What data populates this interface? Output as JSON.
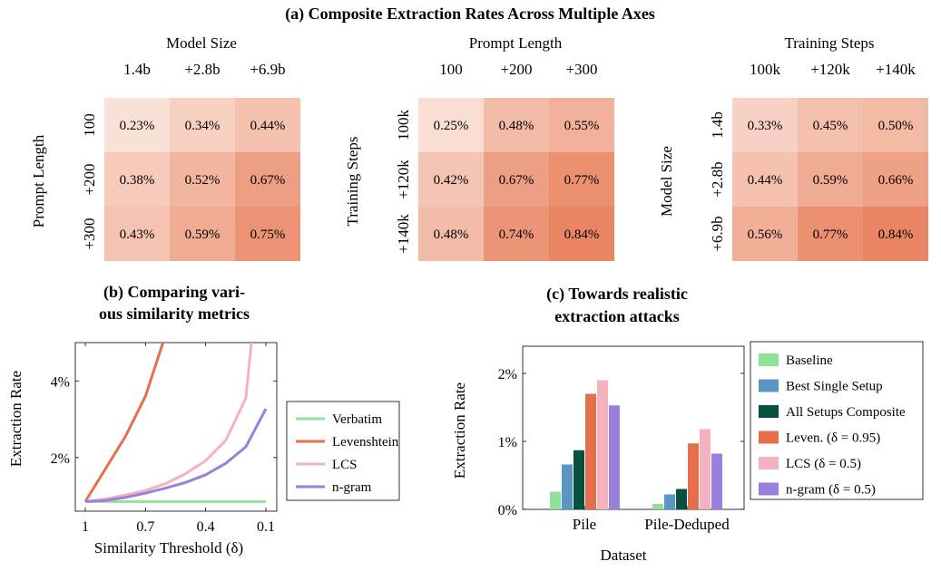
{
  "colors": {
    "heat_low": "#fbe6dd",
    "heat_high": "#e8825f",
    "verbatim": "#8ee29a",
    "levenshtein": "#e56f4a",
    "lcs": "#f3b2be",
    "ngram": "#9b7fdc",
    "baseline": "#8ee29a",
    "best_single": "#5a96c4",
    "all_composite": "#08503f",
    "leven_bar": "#e56f4a",
    "lcs_bar": "#f3b2be",
    "ngram_bar": "#9b7fdc"
  },
  "chart_data": [
    {
      "type": "heatmap",
      "title": "(a) Composite Extraction Rates Across Multiple Axes",
      "xlabel": "Model Size",
      "ylabel": "Prompt Length",
      "x_categories": [
        "1.4b",
        "+2.8b",
        "+6.9b"
      ],
      "y_categories": [
        "100",
        "+200",
        "+300"
      ],
      "cell_labels": [
        [
          "0.23%",
          "0.34%",
          "0.44%"
        ],
        [
          "0.38%",
          "0.52%",
          "0.67%"
        ],
        [
          "0.43%",
          "0.59%",
          "0.75%"
        ]
      ],
      "values": [
        [
          0.23,
          0.34,
          0.44
        ],
        [
          0.38,
          0.52,
          0.67
        ],
        [
          0.43,
          0.59,
          0.75
        ]
      ]
    },
    {
      "type": "heatmap",
      "xlabel": "Prompt Length",
      "ylabel": "Training Steps",
      "x_categories": [
        "100",
        "+200",
        "+300"
      ],
      "y_categories": [
        "100k",
        "+120k",
        "+140k"
      ],
      "cell_labels": [
        [
          "0.25%",
          "0.48%",
          "0.55%"
        ],
        [
          "0.42%",
          "0.67%",
          "0.77%"
        ],
        [
          "0.48%",
          "0.74%",
          "0.84%"
        ]
      ],
      "values": [
        [
          0.25,
          0.48,
          0.55
        ],
        [
          0.42,
          0.67,
          0.77
        ],
        [
          0.48,
          0.74,
          0.84
        ]
      ]
    },
    {
      "type": "heatmap",
      "xlabel": "Training Steps",
      "ylabel": "Model Size",
      "x_categories": [
        "100k",
        "+120k",
        "+140k"
      ],
      "y_categories": [
        "1.4b",
        "+2.8b",
        "+6.9b"
      ],
      "cell_labels": [
        [
          "0.33%",
          "0.45%",
          "0.50%"
        ],
        [
          "0.44%",
          "0.59%",
          "0.66%"
        ],
        [
          "0.56%",
          "0.77%",
          "0.84%"
        ]
      ],
      "values": [
        [
          0.33,
          0.45,
          0.5
        ],
        [
          0.44,
          0.59,
          0.66
        ],
        [
          0.56,
          0.77,
          0.84
        ]
      ]
    },
    {
      "type": "line",
      "title_lines": [
        "(b) Comparing vari-",
        "ous similarity metrics"
      ],
      "xlabel": "Similarity Threshold (δ)",
      "ylabel": "Extraction Rate",
      "x_reversed": true,
      "xlim": [
        1,
        0.1
      ],
      "ylim": [
        0.6,
        5.0
      ],
      "x_ticks": [
        1,
        0.7,
        0.4,
        0.1
      ],
      "x_tick_labels": [
        "1",
        "0.7",
        "0.4",
        "0.1"
      ],
      "y_ticks": [
        2,
        4
      ],
      "y_tick_labels": [
        "2%",
        "4%"
      ],
      "legend_position": "right",
      "series": [
        {
          "name": "Verbatim",
          "x": [
            1,
            0.1
          ],
          "y": [
            0.85,
            0.85
          ]
        },
        {
          "name": "Levenshtein",
          "x": [
            1,
            0.9,
            0.8,
            0.7,
            0.6
          ],
          "y": [
            0.85,
            1.7,
            2.55,
            3.6,
            5.2
          ]
        },
        {
          "name": "LCS",
          "x": [
            1,
            0.9,
            0.8,
            0.7,
            0.6,
            0.5,
            0.4,
            0.3,
            0.2,
            0.17
          ],
          "y": [
            0.85,
            0.92,
            1.02,
            1.14,
            1.32,
            1.58,
            1.92,
            2.45,
            3.55,
            5.1
          ]
        },
        {
          "name": "n-gram",
          "x": [
            1,
            0.9,
            0.8,
            0.7,
            0.6,
            0.5,
            0.4,
            0.3,
            0.2,
            0.1
          ],
          "y": [
            0.85,
            0.88,
            0.96,
            1.07,
            1.2,
            1.35,
            1.55,
            1.85,
            2.28,
            3.27
          ]
        }
      ]
    },
    {
      "type": "bar",
      "title_lines": [
        "(c) Towards realistic",
        "extraction attacks"
      ],
      "xlabel": "Dataset",
      "ylabel": "Extraction Rate",
      "categories": [
        "Pile",
        "Pile-Deduped"
      ],
      "ylim": [
        0,
        2.4
      ],
      "y_ticks": [
        0,
        1,
        2
      ],
      "y_tick_labels": [
        "0%",
        "1%",
        "2%"
      ],
      "legend_position": "top-right",
      "series": [
        {
          "name": "Baseline",
          "values": [
            0.26,
            0.08
          ]
        },
        {
          "name": "Best Single Setup",
          "values": [
            0.66,
            0.22
          ]
        },
        {
          "name": "All Setups Composite",
          "values": [
            0.87,
            0.3
          ]
        },
        {
          "name": "Leven. (δ = 0.95)",
          "values": [
            1.7,
            0.97
          ]
        },
        {
          "name": "LCS (δ = 0.5)",
          "values": [
            1.9,
            1.18
          ]
        },
        {
          "name": "n-gram (δ = 0.5)",
          "values": [
            1.53,
            0.82
          ]
        }
      ]
    }
  ]
}
